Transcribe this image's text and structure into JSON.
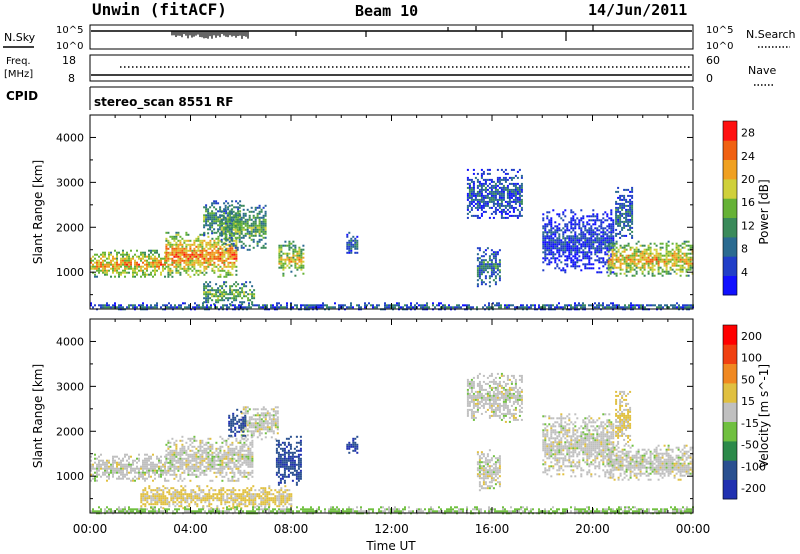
{
  "header": {
    "station": "Unwin (fitACF)",
    "beam": "Beam 10",
    "date": "14/Jun/2011"
  },
  "top_panels": {
    "nsky_label": "N.Sky",
    "nsearch_label": "N.Search",
    "nave_label": "Nave",
    "freq_label_line1": "Freq.",
    "freq_label_line2": "[MHz]",
    "cpid_label": "CPID",
    "cpid_text": "stereo_scan 8551 RF",
    "noise_ticks": [
      "10^5",
      "10^0"
    ],
    "freq_ticks": [
      "18",
      "8"
    ],
    "nave_ticks": [
      "60",
      "0"
    ]
  },
  "chart_data": [
    {
      "type": "heatmap",
      "title": "",
      "xlabel": "Time UT",
      "ylabel": "Slant Range [km]",
      "xlim": [
        0,
        24
      ],
      "ylim": [
        180,
        4500
      ],
      "x_ticks": [
        "00:00",
        "04:00",
        "08:00",
        "12:00",
        "16:00",
        "20:00",
        "00:00"
      ],
      "y_ticks": [
        1000,
        2000,
        3000,
        4000
      ],
      "colorbar": {
        "label": "Power [dB]",
        "ticks": [
          4,
          8,
          12,
          16,
          20,
          24,
          28
        ],
        "range": [
          0,
          30
        ],
        "colors": [
          "#1010ff",
          "#203ec8",
          "#2a6a90",
          "#3a8a5a",
          "#66b236",
          "#cfd03a",
          "#f0a020",
          "#f06010",
          "#ff1010"
        ]
      },
      "echo_regions": [
        {
          "t_start": 0.0,
          "t_end": 3.0,
          "r_low": 900,
          "r_high": 1500,
          "level": 22
        },
        {
          "t_start": 3.0,
          "t_end": 5.8,
          "r_low": 900,
          "r_high": 1900,
          "level": 24
        },
        {
          "t_start": 4.5,
          "t_end": 6.0,
          "r_low": 1800,
          "r_high": 2600,
          "level": 13
        },
        {
          "t_start": 5.2,
          "t_end": 7.0,
          "r_low": 1500,
          "r_high": 2500,
          "level": 14
        },
        {
          "t_start": 7.5,
          "t_end": 8.5,
          "r_low": 900,
          "r_high": 1700,
          "level": 19
        },
        {
          "t_start": 4.5,
          "t_end": 6.5,
          "r_low": 300,
          "r_high": 800,
          "level": 15
        },
        {
          "t_start": 10.2,
          "t_end": 10.6,
          "r_low": 1400,
          "r_high": 1900,
          "level": 9
        },
        {
          "t_start": 15.0,
          "t_end": 17.2,
          "r_low": 2200,
          "r_high": 3300,
          "level": 7
        },
        {
          "t_start": 15.4,
          "t_end": 16.3,
          "r_low": 700,
          "r_high": 1600,
          "level": 10
        },
        {
          "t_start": 18.0,
          "t_end": 20.8,
          "r_low": 1000,
          "r_high": 2400,
          "level": 5
        },
        {
          "t_start": 20.6,
          "t_end": 24.0,
          "r_low": 900,
          "r_high": 1700,
          "level": 21
        },
        {
          "t_start": 20.9,
          "t_end": 21.6,
          "r_low": 1700,
          "r_high": 2900,
          "level": 9
        },
        {
          "t_start": 0.0,
          "t_end": 24.0,
          "r_low": 180,
          "r_high": 330,
          "level": 8
        }
      ]
    },
    {
      "type": "heatmap",
      "title": "",
      "xlabel": "Time UT",
      "ylabel": "Slant Range [km]",
      "xlim": [
        0,
        24
      ],
      "ylim": [
        180,
        4500
      ],
      "x_ticks": [
        "00:00",
        "04:00",
        "08:00",
        "12:00",
        "16:00",
        "20:00",
        "00:00"
      ],
      "y_ticks": [
        1000,
        2000,
        3000,
        4000
      ],
      "colorbar": {
        "label": "Velocity [m s^-1]",
        "ticks": [
          "200",
          "100",
          "50",
          "15",
          "-15",
          "-50",
          "-100",
          "-200"
        ],
        "range": [
          -250,
          250
        ],
        "colors": [
          "#2030b0",
          "#2a5090",
          "#2c8a4a",
          "#70c040",
          "#c0c0c0",
          "#e0c040",
          "#f08820",
          "#f04010",
          "#ff0000"
        ]
      },
      "echo_regions": [
        {
          "t_start": 0.0,
          "t_end": 3.0,
          "r_low": 900,
          "r_high": 1500,
          "level": 0
        },
        {
          "t_start": 3.0,
          "t_end": 6.5,
          "r_low": 900,
          "r_high": 1900,
          "level": 0
        },
        {
          "t_start": 6.0,
          "t_end": 7.5,
          "r_low": 1800,
          "r_high": 2600,
          "level": 0
        },
        {
          "t_start": 5.5,
          "t_end": 6.2,
          "r_low": 1900,
          "r_high": 2500,
          "level": -180
        },
        {
          "t_start": 7.4,
          "t_end": 8.4,
          "r_low": 800,
          "r_high": 1900,
          "level": -180
        },
        {
          "t_start": 2.0,
          "t_end": 8.0,
          "r_low": 300,
          "r_high": 800,
          "level": 40
        },
        {
          "t_start": 10.2,
          "t_end": 10.6,
          "r_low": 1500,
          "r_high": 1900,
          "level": -200
        },
        {
          "t_start": 15.0,
          "t_end": 17.2,
          "r_low": 2200,
          "r_high": 3300,
          "level": 0
        },
        {
          "t_start": 15.4,
          "t_end": 16.3,
          "r_low": 700,
          "r_high": 1600,
          "level": 0
        },
        {
          "t_start": 18.0,
          "t_end": 20.8,
          "r_low": 1000,
          "r_high": 2400,
          "level": 0
        },
        {
          "t_start": 20.6,
          "t_end": 24.0,
          "r_low": 900,
          "r_high": 1700,
          "level": 0
        },
        {
          "t_start": 20.9,
          "t_end": 21.5,
          "r_low": 1700,
          "r_high": 2900,
          "level": 40
        },
        {
          "t_start": 0.0,
          "t_end": 24.0,
          "r_low": 180,
          "r_high": 330,
          "level": -40
        }
      ]
    }
  ]
}
